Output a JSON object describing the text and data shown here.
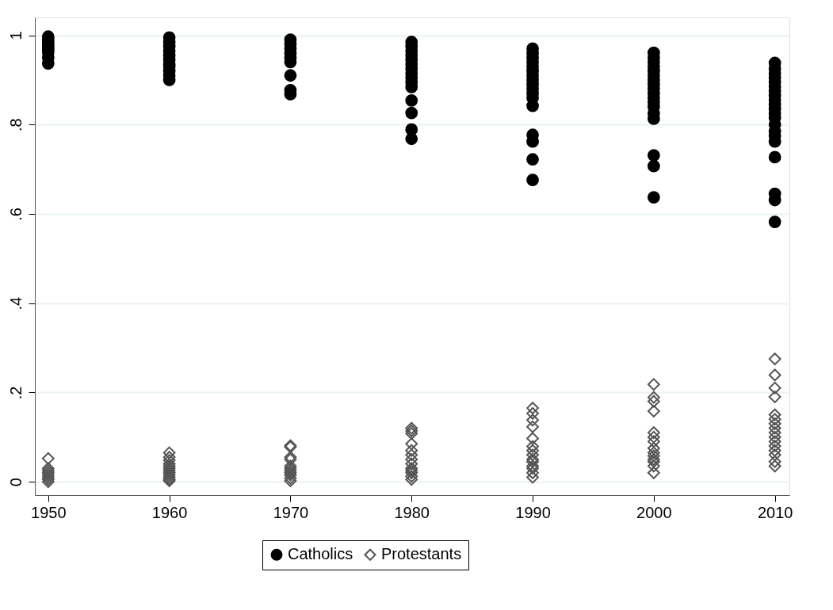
{
  "chart_data": {
    "type": "scatter",
    "xlim": [
      1948.9,
      2011.2
    ],
    "xticks": [
      1950,
      1960,
      1970,
      1980,
      1990,
      2000,
      2010
    ],
    "ylim": [
      -0.03,
      1.04
    ],
    "yticks": [
      {
        "value": 0,
        "label": "0"
      },
      {
        "value": 0.2,
        "label": ".2"
      },
      {
        "value": 0.4,
        "label": ".4"
      },
      {
        "value": 0.6,
        "label": ".6"
      },
      {
        "value": 0.8,
        "label": ".8"
      },
      {
        "value": 1,
        "label": "1"
      }
    ],
    "grid": "y",
    "legend": "bottom",
    "series": [
      {
        "name": "Catholics",
        "color": "#000000",
        "marker": "circle",
        "x": [
          1950,
          1950,
          1950,
          1950,
          1950,
          1950,
          1950,
          1950,
          1960,
          1960,
          1960,
          1960,
          1960,
          1960,
          1960,
          1960,
          1960,
          1960,
          1960,
          1970,
          1970,
          1970,
          1970,
          1970,
          1970,
          1970,
          1970,
          1970,
          1980,
          1980,
          1980,
          1980,
          1980,
          1980,
          1980,
          1980,
          1980,
          1980,
          1980,
          1980,
          1980,
          1980,
          1980,
          1990,
          1990,
          1990,
          1990,
          1990,
          1990,
          1990,
          1990,
          1990,
          1990,
          1990,
          1990,
          1990,
          1990,
          1990,
          1990,
          1990,
          2000,
          2000,
          2000,
          2000,
          2000,
          2000,
          2000,
          2000,
          2000,
          2000,
          2000,
          2000,
          2000,
          2000,
          2000,
          2000,
          2000,
          2000,
          2010,
          2010,
          2010,
          2010,
          2010,
          2010,
          2010,
          2010,
          2010,
          2010,
          2010,
          2010,
          2010,
          2010,
          2010,
          2010,
          2010,
          2010,
          2010,
          2010,
          2010
        ],
        "values": [
          0.997,
          0.99,
          0.982,
          0.975,
          0.968,
          0.95,
          0.962,
          0.937,
          0.995,
          0.985,
          0.975,
          0.965,
          0.955,
          0.945,
          0.935,
          0.93,
          0.92,
          0.91,
          0.9,
          0.99,
          0.98,
          0.97,
          0.96,
          0.95,
          0.94,
          0.91,
          0.877,
          0.868,
          0.985,
          0.975,
          0.965,
          0.955,
          0.945,
          0.935,
          0.925,
          0.915,
          0.905,
          0.895,
          0.884,
          0.854,
          0.826,
          0.789,
          0.768,
          0.97,
          0.96,
          0.95,
          0.94,
          0.93,
          0.92,
          0.91,
          0.9,
          0.89,
          0.88,
          0.87,
          0.86,
          0.842,
          0.777,
          0.762,
          0.722,
          0.676,
          0.961,
          0.95,
          0.94,
          0.93,
          0.92,
          0.91,
          0.9,
          0.89,
          0.88,
          0.87,
          0.86,
          0.85,
          0.84,
          0.825,
          0.813,
          0.731,
          0.707,
          0.637,
          0.938,
          0.925,
          0.915,
          0.905,
          0.895,
          0.885,
          0.875,
          0.865,
          0.855,
          0.845,
          0.835,
          0.825,
          0.815,
          0.8,
          0.785,
          0.775,
          0.762,
          0.727,
          0.645,
          0.631,
          0.582
        ]
      },
      {
        "name": "Protestants",
        "color": "#555555",
        "marker": "diamond",
        "x": [
          1950,
          1950,
          1950,
          1950,
          1950,
          1950,
          1950,
          1950,
          1960,
          1960,
          1960,
          1960,
          1960,
          1960,
          1960,
          1960,
          1960,
          1960,
          1960,
          1960,
          1970,
          1970,
          1970,
          1970,
          1970,
          1970,
          1970,
          1970,
          1970,
          1970,
          1970,
          1980,
          1980,
          1980,
          1980,
          1980,
          1980,
          1980,
          1980,
          1980,
          1980,
          1980,
          1980,
          1980,
          1990,
          1990,
          1990,
          1990,
          1990,
          1990,
          1990,
          1990,
          1990,
          1990,
          1990,
          1990,
          1990,
          1990,
          2000,
          2000,
          2000,
          2000,
          2000,
          2000,
          2000,
          2000,
          2000,
          2000,
          2000,
          2000,
          2000,
          2000,
          2010,
          2010,
          2010,
          2010,
          2010,
          2010,
          2010,
          2010,
          2010,
          2010,
          2010,
          2010,
          2010,
          2010,
          2010,
          2010
        ],
        "values": [
          0.052,
          0.03,
          0.025,
          0.02,
          0.015,
          0.01,
          0.005,
          0.0,
          0.065,
          0.055,
          0.048,
          0.04,
          0.035,
          0.03,
          0.025,
          0.02,
          0.015,
          0.01,
          0.005,
          0.002,
          0.081,
          0.078,
          0.055,
          0.05,
          0.035,
          0.03,
          0.025,
          0.02,
          0.015,
          0.008,
          0.002,
          0.12,
          0.114,
          0.108,
          0.085,
          0.07,
          0.06,
          0.05,
          0.04,
          0.03,
          0.025,
          0.02,
          0.012,
          0.005,
          0.165,
          0.153,
          0.138,
          0.123,
          0.097,
          0.079,
          0.07,
          0.06,
          0.05,
          0.045,
          0.035,
          0.03,
          0.02,
          0.01,
          0.218,
          0.189,
          0.18,
          0.158,
          0.11,
          0.1,
          0.09,
          0.075,
          0.065,
          0.058,
          0.05,
          0.045,
          0.035,
          0.02,
          0.275,
          0.239,
          0.21,
          0.19,
          0.15,
          0.14,
          0.13,
          0.12,
          0.11,
          0.1,
          0.09,
          0.08,
          0.07,
          0.06,
          0.045,
          0.035
        ]
      }
    ]
  }
}
